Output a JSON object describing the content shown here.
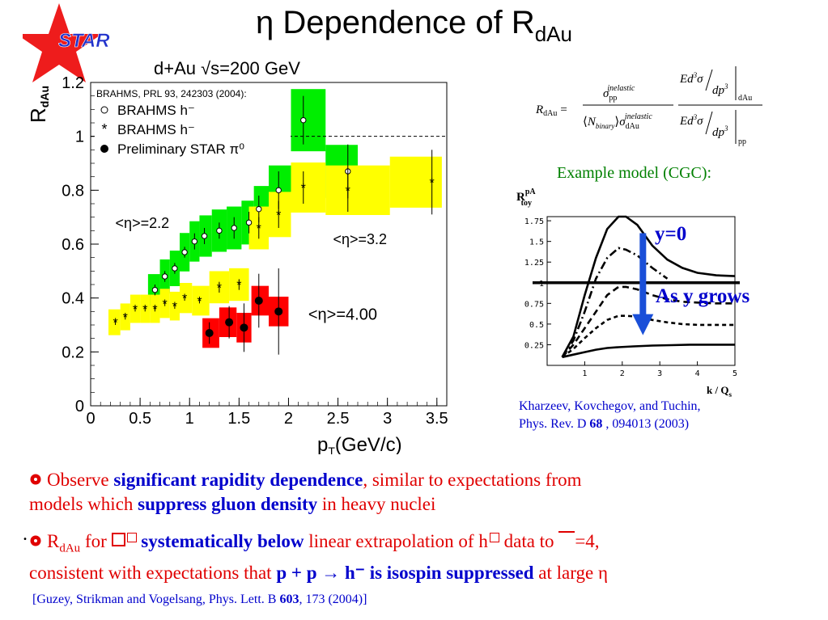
{
  "slide": {
    "title_main": "η Dependence of R",
    "title_sub": "dAu",
    "logo_text": "STAR"
  },
  "chart_data": [
    {
      "type": "scatter",
      "title": "d+Au √s=200 GeV",
      "xlabel": "p",
      "xlabel_sub": "T",
      "xlabel_unit": "(GeV/c)",
      "ylabel": "R",
      "ylabel_sub": "dAu",
      "xlim": [
        0,
        3.6
      ],
      "ylim": [
        0,
        1.2
      ],
      "xticks": [
        "0",
        "0.5",
        "1",
        "1.5",
        "2",
        "2.5",
        "3",
        "3.5"
      ],
      "yticks": [
        "0",
        "0.2",
        "0.4",
        "0.6",
        "0.8",
        "1",
        "1.2"
      ],
      "reference_line": 1,
      "colors": {
        "green": "#00ee00",
        "yellow": "#ffff00",
        "red": "#ff0000"
      },
      "legend_title": "BRAHMS, PRL 93, 242303 (2004):",
      "legend": [
        "BRAHMS h⁻",
        "BRAHMS h⁻",
        "Preliminary STAR π⁰"
      ],
      "annotations": [
        "<η>=2.2",
        "<η>=3.2",
        "<η>=4.00"
      ],
      "series": [
        {
          "name": "BRAHMS h⁻",
          "eta_label": "<η>=2.2",
          "marker": "open-circle",
          "band_color": "green",
          "x": [
            0.65,
            0.75,
            0.85,
            0.95,
            1.05,
            1.15,
            1.3,
            1.45,
            1.6,
            1.7,
            1.9,
            2.15,
            2.6
          ],
          "y": [
            0.43,
            0.48,
            0.51,
            0.57,
            0.61,
            0.63,
            0.65,
            0.66,
            0.68,
            0.73,
            0.8,
            1.06,
            0.87
          ],
          "err": [
            0.02,
            0.02,
            0.02,
            0.02,
            0.03,
            0.03,
            0.03,
            0.04,
            0.04,
            0.05,
            0.07,
            0.09,
            0.1
          ]
        },
        {
          "name": "BRAHMS h⁻",
          "eta_label": "<η>=3.2",
          "marker": "asterisk",
          "band_color": "yellow",
          "x": [
            0.25,
            0.35,
            0.45,
            0.55,
            0.65,
            0.75,
            0.85,
            0.95,
            1.1,
            1.3,
            1.5,
            1.7,
            1.9,
            2.15,
            2.6,
            3.45
          ],
          "y": [
            0.31,
            0.33,
            0.36,
            0.36,
            0.36,
            0.38,
            0.37,
            0.4,
            0.39,
            0.44,
            0.45,
            0.66,
            0.71,
            0.81,
            0.8,
            0.83
          ],
          "err": [
            0.01,
            0.01,
            0.01,
            0.01,
            0.01,
            0.01,
            0.01,
            0.01,
            0.01,
            0.02,
            0.02,
            0.04,
            0.05,
            0.06,
            0.08,
            0.12
          ]
        },
        {
          "name": "Preliminary STAR π⁰",
          "eta_label": "<η>=4.00",
          "marker": "filled-circle",
          "band_color": "red",
          "x": [
            1.2,
            1.4,
            1.55,
            1.7,
            1.9
          ],
          "y": [
            0.27,
            0.31,
            0.29,
            0.39,
            0.35
          ],
          "err": [
            0.04,
            0.06,
            0.09,
            0.1,
            0.16
          ]
        }
      ]
    },
    {
      "type": "line",
      "title": "Example model (CGC):",
      "ylabel": "R",
      "ylabel_sup": "pA",
      "ylabel_sub": "toy",
      "xlabel": "k / Q",
      "xlabel_sub": "s",
      "xlim": [
        0,
        5
      ],
      "ylim": [
        0,
        1.8
      ],
      "xticks": [
        "1",
        "2",
        "3",
        "4",
        "5"
      ],
      "yticks": [
        "0.25",
        "0.5",
        "0.75",
        "1",
        "1.25",
        "1.5",
        "1.75"
      ],
      "reference_line": 1,
      "annotations": [
        "y=0",
        "As y grows"
      ],
      "series": [
        {
          "style": "solid",
          "x": [
            0.4,
            0.7,
            1.0,
            1.3,
            1.6,
            1.9,
            2.1,
            2.4,
            2.8,
            3.2,
            3.6,
            4.0,
            4.5,
            5.0
          ],
          "y": [
            0.1,
            0.35,
            0.85,
            1.3,
            1.65,
            1.8,
            1.8,
            1.7,
            1.45,
            1.28,
            1.18,
            1.12,
            1.09,
            1.08
          ]
        },
        {
          "style": "dashdot",
          "x": [
            0.4,
            0.7,
            1.0,
            1.3,
            1.6,
            1.9,
            2.1,
            2.4,
            2.8,
            3.2
          ],
          "y": [
            0.1,
            0.3,
            0.65,
            1.05,
            1.3,
            1.42,
            1.4,
            1.33,
            1.18,
            1.05
          ]
        },
        {
          "style": "dashed",
          "x": [
            0.4,
            0.7,
            1.0,
            1.3,
            1.6,
            1.9,
            2.1,
            2.4,
            2.8,
            3.2,
            3.6,
            4.0,
            4.5,
            5.0
          ],
          "y": [
            0.1,
            0.25,
            0.45,
            0.65,
            0.85,
            0.95,
            0.95,
            0.92,
            0.85,
            0.8,
            0.77,
            0.76,
            0.75,
            0.75
          ]
        },
        {
          "style": "dotted",
          "x": [
            0.4,
            0.7,
            1.0,
            1.3,
            1.6,
            1.9,
            2.1,
            2.4,
            2.8,
            3.2,
            3.6,
            4.0,
            4.5,
            5.0
          ],
          "y": [
            0.1,
            0.2,
            0.33,
            0.45,
            0.55,
            0.6,
            0.6,
            0.59,
            0.55,
            0.52,
            0.5,
            0.49,
            0.49,
            0.49
          ]
        },
        {
          "style": "solid",
          "x": [
            0.4,
            0.7,
            1.0,
            1.3,
            1.6,
            1.9,
            2.3,
            2.8,
            3.3,
            3.8,
            4.3,
            5.0
          ],
          "y": [
            0.1,
            0.13,
            0.16,
            0.19,
            0.21,
            0.22,
            0.23,
            0.24,
            0.245,
            0.25,
            0.25,
            0.25
          ]
        }
      ]
    }
  ],
  "formula": {
    "lhs": "R",
    "lhs_sub": "dAu",
    "sigma_num_sup": "inelastic",
    "sigma_num_sub": "pp",
    "n_binary": "N",
    "n_binary_sub": "binary",
    "sigma_den_sup": "inelastic",
    "sigma_den_sub": "dAu",
    "ed3": "Ed",
    "sigma": "σ",
    "dp3": "dp",
    "eval_top": "dAu",
    "eval_bottom": "pp",
    "three": "3"
  },
  "cgc": {
    "caption": "Example model (CGC):",
    "ref_line1": "Kharzeev, Kovchegov, and Tuchin,",
    "ref_line2_prefix": "Phys. Rev. D ",
    "ref_line2_bold": "68",
    "ref_line2_suffix": " , 094013 (2003)"
  },
  "bullets": {
    "b1_pre": "Observe ",
    "b1_bold1": "significant rapidity dependence",
    "b1_mid": ", similar to expectations from",
    "b1_line2_pre": "models which ",
    "b1_bold2": "suppress gluon density",
    "b1_line2_post": " in heavy nuclei",
    "b2_r": "R",
    "b2_r_sub": "dAu",
    "b2_for": " for ",
    "b2_bold1": " systematically below",
    "b2_mid": " linear extrapolation of h",
    "b2_data_to": " data to ",
    "b2_eq": "=4,",
    "b2_line2_pre": "consistent with expectations that ",
    "b2_bold2": "p + p → h⁻ is isospin suppressed",
    "b2_line2_post": " at large η",
    "stray_dot": "."
  },
  "reference": {
    "pre": "[Guzey, Strikman and Vogelsang, Phys. Lett. B ",
    "bold": "603",
    "post": ", 173 (2004)]"
  },
  "colors": {
    "bullet_red": "#e00000",
    "emphasis_blue": "#0000cc",
    "cgc_green": "#008000",
    "arrow_blue": "#1a4fd8",
    "star_red": "#ee1c1c",
    "star_text_blue": "#2233cc"
  }
}
